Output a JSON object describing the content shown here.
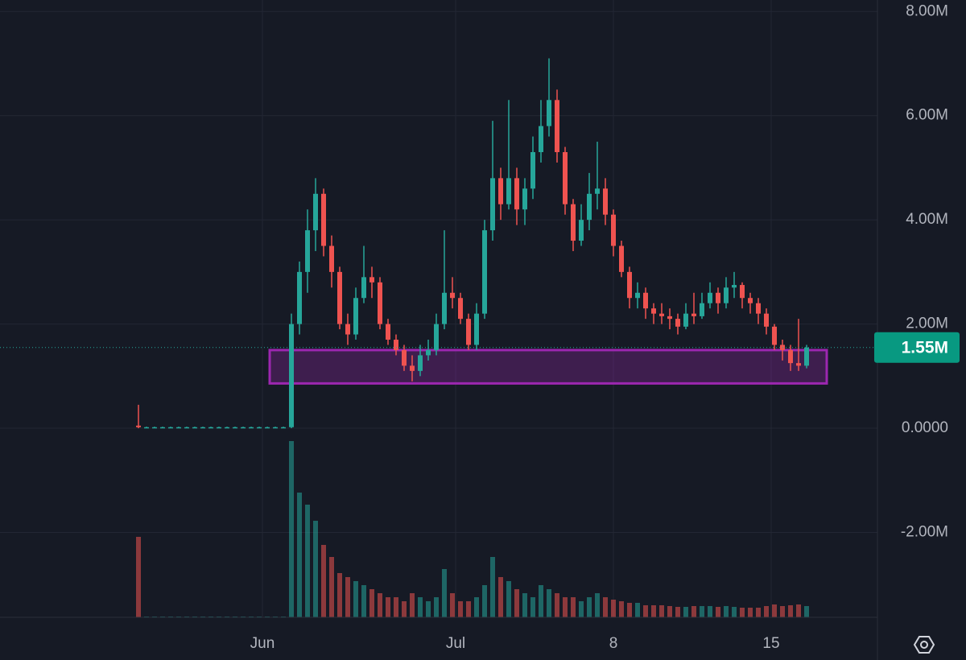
{
  "chart_data": {
    "type": "candlestick",
    "ylim": [
      -3.63,
      8.22
    ],
    "yticks": [
      {
        "value": 8,
        "label": "8.00M"
      },
      {
        "value": 6,
        "label": "6.00M"
      },
      {
        "value": 4,
        "label": "4.00M"
      },
      {
        "value": 2,
        "label": "2.00M"
      },
      {
        "value": 0,
        "label": "0.0000"
      },
      {
        "value": -2,
        "label": "-2.00M"
      }
    ],
    "xlim": [
      -17.2,
      91.8
    ],
    "xticks": [
      {
        "value": 15.4,
        "label": "Jun"
      },
      {
        "value": 39.4,
        "label": "Jul"
      },
      {
        "value": 59,
        "label": "8"
      },
      {
        "value": 78.6,
        "label": "15"
      }
    ],
    "grid": true,
    "up_color": "#26a69a",
    "down_color": "#ef5350",
    "open": [
      0.05,
      0.02,
      0.02,
      0.02,
      0.02,
      0.02,
      0.02,
      0.02,
      0.02,
      0.02,
      0.02,
      0.02,
      0.02,
      0.02,
      0.02,
      0.02,
      0.02,
      0.02,
      0.02,
      0.02,
      2.0,
      3.0,
      3.8,
      4.5,
      3.5,
      3.0,
      2.0,
      1.8,
      2.5,
      2.9,
      2.8,
      2.0,
      1.7,
      1.5,
      1.2,
      1.1,
      1.4,
      1.5,
      2.0,
      2.6,
      2.5,
      2.1,
      1.6,
      2.2,
      3.8,
      4.8,
      4.3,
      4.8,
      4.2,
      4.6,
      5.3,
      5.8,
      6.3,
      5.3,
      4.3,
      3.6,
      4.0,
      4.5,
      4.6,
      4.1,
      3.5,
      3.0,
      2.5,
      2.6,
      2.3,
      2.2,
      2.15,
      2.1,
      1.95,
      2.2,
      2.15,
      2.4,
      2.6,
      2.4,
      2.7,
      2.75,
      2.5,
      2.4,
      2.2,
      1.95,
      1.6,
      1.5,
      1.25,
      1.2
    ],
    "high": [
      0.45,
      0.03,
      0.03,
      0.03,
      0.03,
      0.03,
      0.03,
      0.03,
      0.03,
      0.03,
      0.03,
      0.03,
      0.03,
      0.03,
      0.03,
      0.03,
      0.03,
      0.03,
      0.03,
      2.2,
      3.2,
      4.2,
      4.8,
      4.6,
      3.7,
      3.1,
      2.2,
      2.7,
      3.5,
      3.1,
      2.9,
      2.1,
      1.8,
      1.6,
      1.4,
      1.6,
      1.7,
      2.2,
      3.8,
      2.9,
      2.6,
      2.2,
      2.4,
      4.0,
      5.9,
      5.0,
      6.3,
      5.0,
      4.8,
      5.6,
      6.3,
      7.1,
      6.5,
      5.4,
      4.4,
      4.3,
      4.9,
      5.5,
      4.8,
      4.2,
      3.6,
      3.1,
      2.8,
      2.7,
      2.4,
      2.4,
      2.3,
      2.2,
      2.4,
      2.6,
      2.6,
      2.8,
      2.7,
      2.9,
      3.0,
      2.8,
      2.6,
      2.5,
      2.3,
      2.0,
      1.7,
      1.6,
      2.1,
      1.6
    ],
    "low": [
      0.0,
      0.01,
      0.01,
      0.01,
      0.01,
      0.01,
      0.01,
      0.01,
      0.01,
      0.01,
      0.01,
      0.01,
      0.01,
      0.01,
      0.01,
      0.01,
      0.01,
      0.01,
      0.01,
      0.0,
      1.8,
      2.6,
      3.4,
      3.3,
      2.7,
      1.9,
      1.6,
      1.7,
      2.4,
      2.5,
      1.9,
      1.6,
      1.4,
      1.1,
      0.9,
      1.0,
      1.3,
      1.4,
      1.9,
      2.3,
      2.0,
      1.5,
      1.5,
      2.1,
      3.6,
      4.0,
      4.2,
      3.9,
      3.9,
      4.4,
      5.1,
      5.6,
      5.1,
      4.1,
      3.4,
      3.5,
      3.8,
      4.2,
      3.9,
      3.3,
      2.9,
      2.3,
      2.3,
      2.1,
      2.0,
      2.0,
      1.9,
      1.8,
      1.9,
      2.0,
      2.1,
      2.3,
      2.2,
      2.3,
      2.5,
      2.3,
      2.2,
      2.0,
      1.8,
      1.5,
      1.3,
      1.1,
      1.1,
      1.15
    ],
    "close": [
      0.02,
      0.02,
      0.02,
      0.02,
      0.02,
      0.02,
      0.02,
      0.02,
      0.02,
      0.02,
      0.02,
      0.02,
      0.02,
      0.02,
      0.02,
      0.02,
      0.02,
      0.02,
      0.02,
      2.0,
      3.0,
      3.8,
      4.5,
      3.5,
      3.0,
      2.0,
      1.8,
      2.5,
      2.9,
      2.8,
      2.0,
      1.7,
      1.5,
      1.2,
      1.1,
      1.4,
      1.5,
      2.0,
      2.6,
      2.5,
      2.1,
      1.6,
      2.2,
      3.8,
      4.8,
      4.3,
      4.8,
      4.2,
      4.6,
      5.3,
      5.8,
      6.3,
      5.3,
      4.3,
      3.6,
      4.0,
      4.5,
      4.6,
      4.1,
      3.5,
      3.0,
      2.5,
      2.6,
      2.3,
      2.2,
      2.15,
      2.1,
      1.95,
      2.2,
      2.15,
      2.4,
      2.6,
      2.4,
      2.7,
      2.75,
      2.5,
      2.4,
      2.2,
      1.95,
      1.6,
      1.5,
      1.25,
      1.2,
      1.55
    ],
    "volume": [
      100,
      1,
      1,
      1,
      1,
      1,
      1,
      1,
      1,
      1,
      1,
      1,
      1,
      1,
      1,
      1,
      1,
      1,
      1,
      219,
      155,
      140,
      120,
      90,
      75,
      55,
      50,
      45,
      40,
      35,
      30,
      25,
      25,
      20,
      30,
      25,
      20,
      25,
      60,
      30,
      20,
      20,
      25,
      40,
      75,
      50,
      45,
      35,
      30,
      25,
      40,
      35,
      30,
      25,
      25,
      20,
      25,
      30,
      25,
      22,
      20,
      18,
      18,
      15,
      15,
      15,
      14,
      13,
      13,
      14,
      14,
      14,
      13,
      14,
      13,
      12,
      12,
      12,
      14,
      16,
      14,
      15,
      16,
      14
    ],
    "last_price": {
      "value": 1.55,
      "label": "1.55M"
    },
    "zone": {
      "x": [
        16.3,
        85.5
      ],
      "y": [
        1.5,
        0.86
      ],
      "color": "#9c27b0"
    }
  }
}
